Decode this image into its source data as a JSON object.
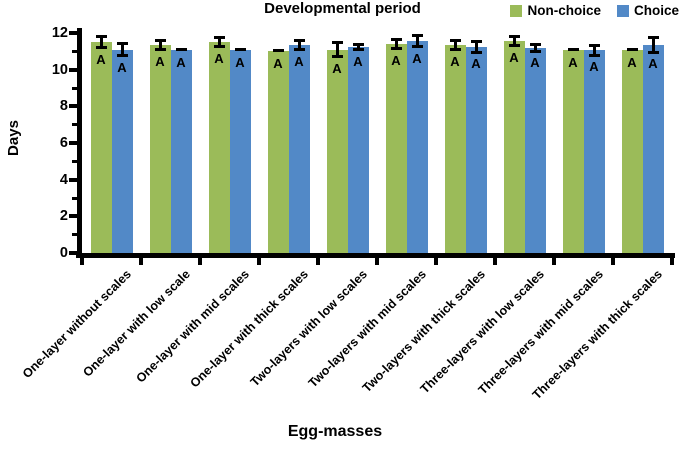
{
  "chart_data": {
    "type": "bar",
    "title": "Developmental period",
    "xlabel": "Egg-masses",
    "ylabel": "Days",
    "ylim": [
      0,
      12
    ],
    "y_major_ticks": [
      0,
      2,
      4,
      6,
      8,
      10,
      12
    ],
    "y_minor_ticks": [
      1,
      3,
      5,
      7,
      9,
      11
    ],
    "grid": false,
    "legend_position": "top-right",
    "categories": [
      "One-layer without scales",
      "One-layer with low scale",
      "One-layer with mid scales",
      "One-layer with thick scales",
      "Two-layers with low scales",
      "Two-layers with mid scales",
      "Two-layers with thick scales",
      "Three-layers with low scales",
      "Three-layers with mid scales",
      "Three-layers with thick scales"
    ],
    "series": [
      {
        "name": "Non-choice",
        "color": "#9BBB59",
        "values": [
          11.5,
          11.35,
          11.5,
          11.0,
          11.1,
          11.4,
          11.35,
          11.55,
          11.05,
          11.1
        ],
        "errors": [
          0.3,
          0.25,
          0.25,
          0.05,
          0.4,
          0.25,
          0.25,
          0.25,
          0.05,
          0.05
        ],
        "bar_labels": [
          "A",
          "A",
          "A",
          "A",
          "A",
          "A",
          "A",
          "A",
          "A",
          "A"
        ]
      },
      {
        "name": "Choice",
        "color": "#5289C7",
        "values": [
          11.1,
          11.05,
          11.05,
          11.35,
          11.25,
          11.55,
          11.25,
          11.2,
          11.05,
          11.35
        ],
        "errors": [
          0.35,
          0.05,
          0.05,
          0.25,
          0.15,
          0.3,
          0.3,
          0.2,
          0.25,
          0.4
        ],
        "bar_labels": [
          "A",
          "A",
          "A",
          "A",
          "A",
          "A",
          "A",
          "A",
          "A",
          "A"
        ]
      }
    ]
  },
  "legend": {
    "items": [
      {
        "label": "Non-choice",
        "color": "#9BBB59"
      },
      {
        "label": "Choice",
        "color": "#5289C7"
      }
    ]
  },
  "colors": {
    "axis": "#000000",
    "error_bar": "#000000",
    "background": "#FFFFFF",
    "text": "#000000"
  }
}
